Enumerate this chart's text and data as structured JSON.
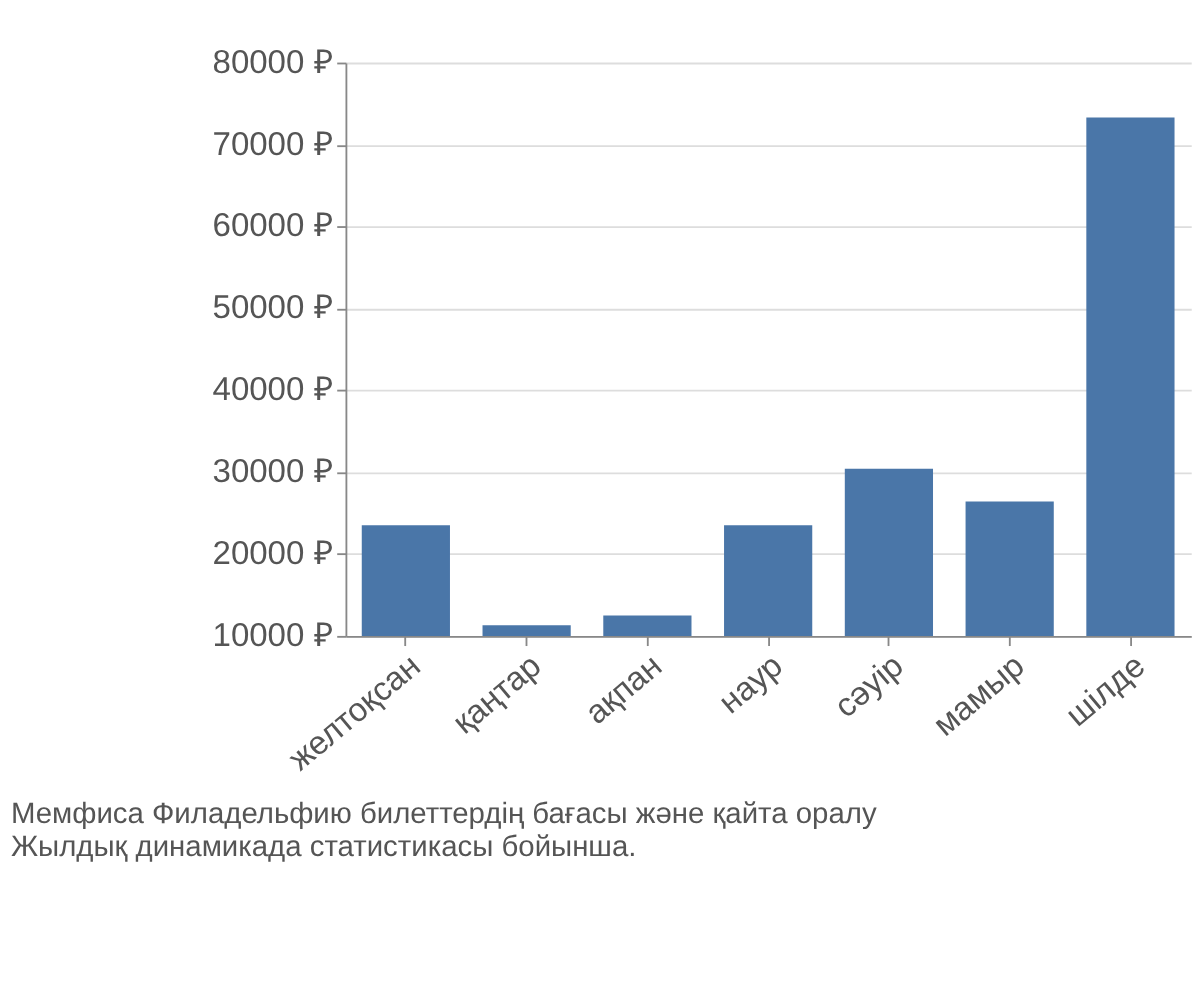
{
  "chart_data": {
    "type": "bar",
    "categories": [
      "желтоқсан",
      "қаңтар",
      "ақпан",
      "наур",
      "сәуір",
      "мамыр",
      "шілде"
    ],
    "values": [
      23500,
      11300,
      12500,
      23500,
      30400,
      26400,
      73300
    ],
    "color": "#4a76a8",
    "ylim": [
      10000,
      80000
    ],
    "yticks": [
      {
        "value": 10000,
        "label": "10000 ₽"
      },
      {
        "value": 20000,
        "label": "20000 ₽"
      },
      {
        "value": 30000,
        "label": "30000 ₽"
      },
      {
        "value": 40000,
        "label": "40000 ₽"
      },
      {
        "value": 50000,
        "label": "50000 ₽"
      },
      {
        "value": 60000,
        "label": "60000 ₽"
      },
      {
        "value": 70000,
        "label": "70000 ₽"
      },
      {
        "value": 80000,
        "label": "80000 ₽"
      }
    ],
    "grid": true,
    "annotations": [
      "Мемфиса Филадельфию билеттердің бағасы және қайта оралу",
      "Жылдық динамикада статистикасы бойынша."
    ]
  }
}
